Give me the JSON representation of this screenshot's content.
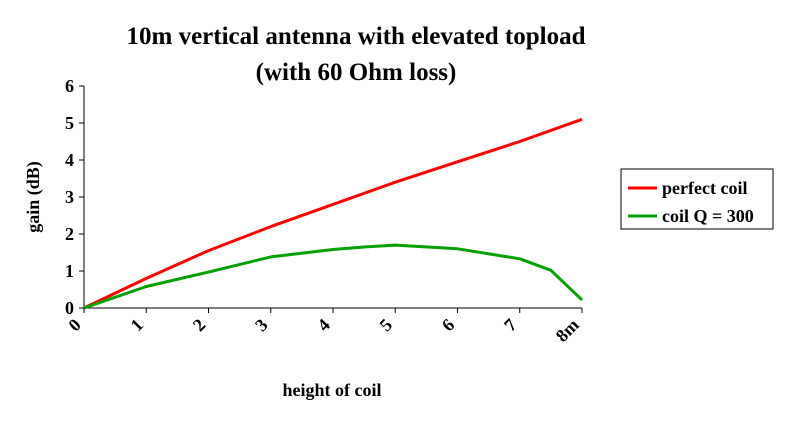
{
  "chart_data": {
    "type": "line",
    "title": "10m vertical antenna with elevated topload",
    "subtitle": "(with 60 Ohm loss)",
    "xlabel": "height of coil",
    "ylabel": "gain (dB)",
    "x_tick_labels": [
      "0",
      "1",
      "2",
      "3",
      "4",
      "5",
      "6",
      "7",
      "8m"
    ],
    "y_tick_labels": [
      "0",
      "1",
      "2",
      "3",
      "4",
      "5",
      "6"
    ],
    "xlim": [
      0,
      8
    ],
    "ylim": [
      0,
      6
    ],
    "grid": false,
    "legend_position": "right",
    "series": [
      {
        "name": "perfect coil",
        "color": "#ff0000",
        "x": [
          0,
          1,
          2,
          3,
          4,
          5,
          6,
          7,
          8
        ],
        "y": [
          0,
          0.8,
          1.55,
          2.2,
          2.8,
          3.4,
          3.95,
          4.5,
          5.1
        ]
      },
      {
        "name": "coil Q = 300",
        "color": "#00a000",
        "x": [
          0,
          1,
          2,
          3,
          4,
          4.5,
          5,
          6,
          7,
          7.5,
          8
        ],
        "y": [
          0,
          0.58,
          0.97,
          1.38,
          1.58,
          1.65,
          1.7,
          1.6,
          1.33,
          1.02,
          0.22
        ]
      }
    ]
  }
}
